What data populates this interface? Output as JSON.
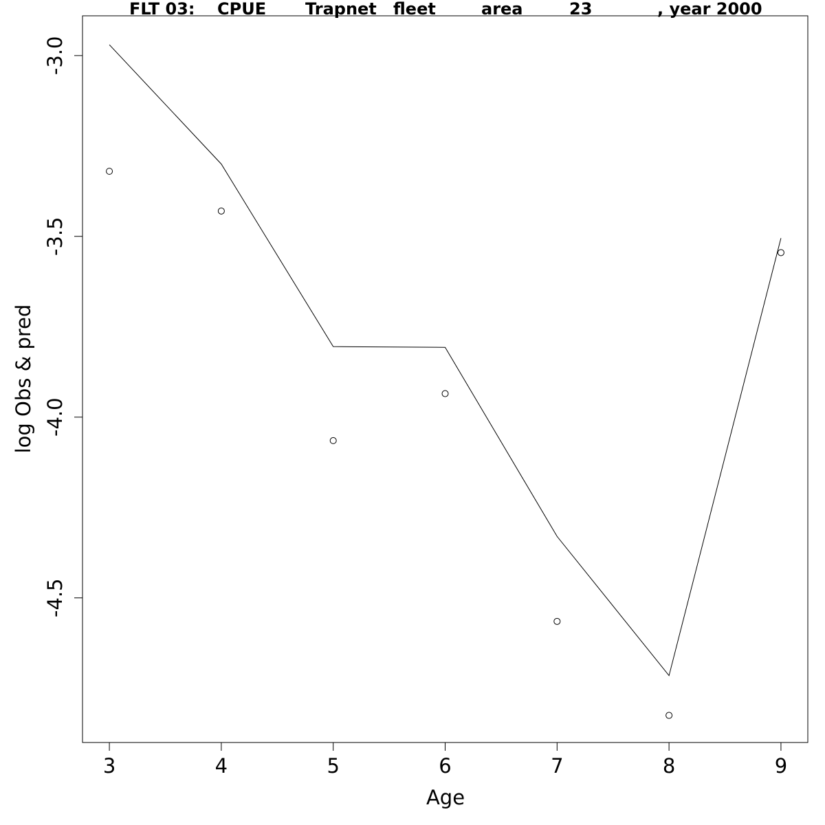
{
  "chart_data": {
    "type": "line",
    "title": "FLT 03:    CPUE       Trapnet   fleet        area        23            , year 2000",
    "xlabel": "Age",
    "ylabel": "log Obs & pred",
    "xlim": [
      2.76,
      9.24
    ],
    "ylim": [
      -4.9,
      -2.89
    ],
    "x_ticks": [
      3,
      4,
      5,
      6,
      7,
      8,
      9
    ],
    "x_tick_labels": [
      "3",
      "4",
      "5",
      "6",
      "7",
      "8",
      "9"
    ],
    "y_ticks": [
      -4.5,
      -4.0,
      -3.5,
      -3.0
    ],
    "y_tick_labels": [
      "-4.5",
      "-4.0",
      "-3.5",
      "-3.0"
    ],
    "grid": false,
    "legend": "none",
    "x": [
      3,
      4,
      5,
      6,
      7,
      8,
      9
    ],
    "series": [
      {
        "style": "line",
        "values": [
          -2.97,
          -3.3,
          -3.805,
          -3.807,
          -4.33,
          -4.715,
          -3.505
        ]
      },
      {
        "style": "points",
        "marker": "open-circle",
        "values": [
          -3.32,
          -3.43,
          -4.065,
          -3.935,
          -4.565,
          -4.825,
          -3.545
        ]
      }
    ]
  },
  "title_parts": [
    "FLT 03:",
    "CPUE",
    "Trapnet",
    "fleet",
    "area",
    "23",
    ", year 2000"
  ],
  "colors": {
    "line": "#000000",
    "points": "#000000",
    "frame": "#000000",
    "background": "#ffffff"
  }
}
